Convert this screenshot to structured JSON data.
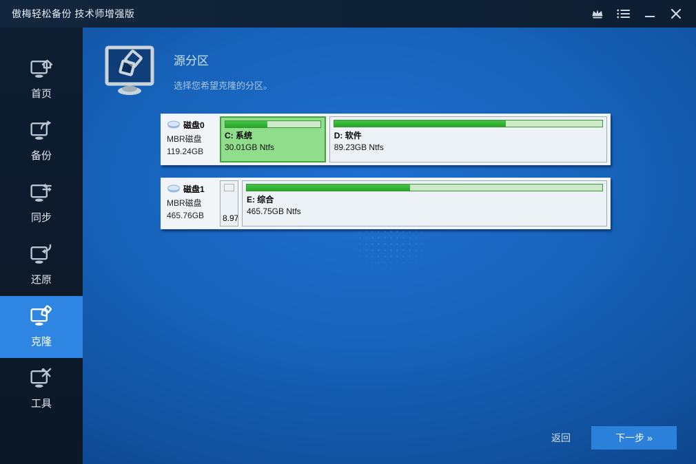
{
  "titlebar": {
    "title": "傲梅轻松备份 技术师增强版",
    "icons": {
      "upgrade": "crown-icon",
      "menu": "menu-list-icon",
      "minimize": "minimize-icon",
      "close": "close-icon"
    }
  },
  "sidebar": {
    "items": [
      {
        "label": "首页",
        "icon": "monitor-home-icon",
        "selected": false
      },
      {
        "label": "备份",
        "icon": "monitor-backup-icon",
        "selected": false
      },
      {
        "label": "同步",
        "icon": "monitor-sync-icon",
        "selected": false
      },
      {
        "label": "还原",
        "icon": "monitor-restore-icon",
        "selected": false
      },
      {
        "label": "克隆",
        "icon": "monitor-clone-icon",
        "selected": true
      },
      {
        "label": "工具",
        "icon": "monitor-tools-icon",
        "selected": false
      }
    ]
  },
  "header": {
    "title": "源分区",
    "subtitle": "选择您希望克隆的分区。",
    "icon": "clone-monitor-icon"
  },
  "disks": [
    {
      "name": "磁盘0",
      "type": "MBR磁盘",
      "size": "119.24GB",
      "partitions": [
        {
          "name": "C: 系统",
          "size": "30.01GB Ntfs",
          "used_percent": 44,
          "selected": true
        },
        {
          "name": "D: 软件",
          "size": "89.23GB Ntfs",
          "used_percent": 64,
          "selected": false
        }
      ]
    },
    {
      "name": "磁盘1",
      "type": "MBR磁盘",
      "size": "465.76GB",
      "partitions": [
        {
          "name": "8.97",
          "size": "",
          "used_percent": 0,
          "selected": false
        },
        {
          "name": "E: 综合",
          "size": "465.75GB Ntfs",
          "used_percent": 46,
          "selected": false
        }
      ]
    }
  ],
  "footer": {
    "back_label": "返回",
    "next_label": "下一步 »"
  },
  "colors": {
    "accent_blue": "#2e86e2",
    "button_blue": "#2b80d9",
    "selected_partition_green": "#90dd8c",
    "bar_fill_green": "#2fb42f"
  }
}
